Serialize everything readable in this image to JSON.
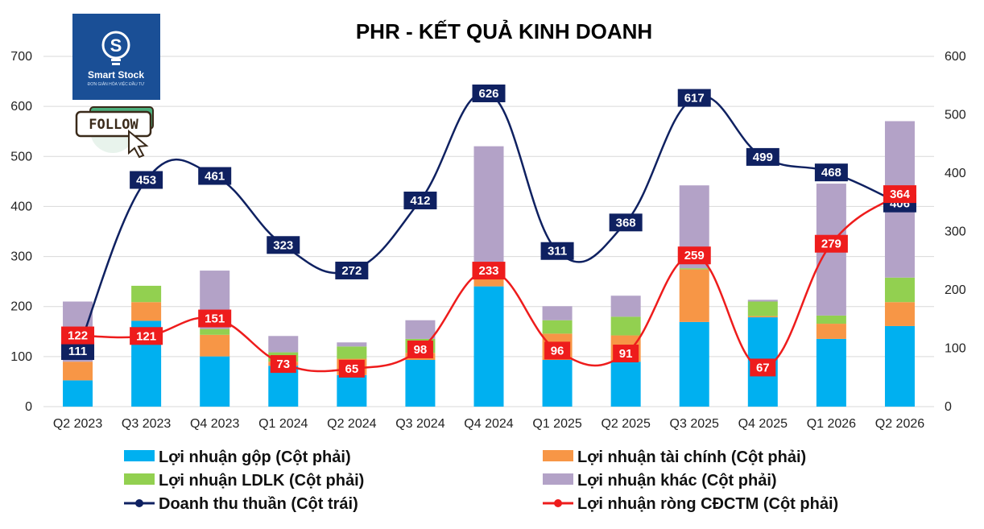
{
  "chart_data": {
    "type": "bar",
    "title": "PHR - KẾT QUẢ KINH DOANH",
    "categories": [
      "Q2 2023",
      "Q3 2023",
      "Q4 2023",
      "Q1 2024",
      "Q2 2024",
      "Q3 2024",
      "Q4 2024",
      "Q1 2025",
      "Q2 2025",
      "Q3 2025",
      "Q4 2025",
      "Q1 2026",
      "Q2 2026"
    ],
    "y_left": {
      "range": [
        0,
        700
      ],
      "ticks": [
        "0",
        "100",
        "200",
        "300",
        "400",
        "500",
        "600",
        "700"
      ]
    },
    "y_right": {
      "range": [
        0,
        600
      ],
      "ticks": [
        "0",
        "100",
        "200",
        "300",
        "400",
        "500",
        "600"
      ]
    },
    "grid": true,
    "legend_position": "bottom",
    "stacked_series": [
      {
        "name": "Lợi nhuận gộp (Cột phải)",
        "color": "#00b0f0",
        "axis": "right",
        "values": [
          45,
          147,
          86,
          70,
          54,
          80,
          206,
          80,
          77,
          145,
          153,
          116,
          138
        ]
      },
      {
        "name": "Lợi nhuận tài chính (Cột phải)",
        "color": "#f79646",
        "axis": "right",
        "values": [
          32,
          32,
          37,
          7,
          28,
          12,
          37,
          45,
          45,
          90,
          2,
          26,
          41
        ]
      },
      {
        "name": "Lợi nhuận LDLK (Cột phải)",
        "color": "#92d050",
        "axis": "right",
        "values": [
          0,
          28,
          10,
          16,
          21,
          24,
          0,
          23,
          32,
          2,
          25,
          14,
          42
        ]
      },
      {
        "name": "Lợi nhuận khác (Cột phải)",
        "color": "#b3a2c7",
        "axis": "right",
        "values": [
          103,
          0,
          100,
          28,
          7,
          32,
          203,
          24,
          36,
          142,
          3,
          226,
          268
        ]
      }
    ],
    "line_series": [
      {
        "name": "Doanh thu thuần (Cột trái)",
        "color": "#0f2161",
        "axis": "left",
        "values": [
          111,
          453,
          461,
          323,
          272,
          412,
          626,
          311,
          368,
          617,
          499,
          468,
          406
        ]
      },
      {
        "name": "Lợi nhuận ròng CĐCTM (Cột phải)",
        "color": "#ee1c1c",
        "axis": "right",
        "values": [
          122,
          121,
          151,
          73,
          65,
          98,
          233,
          96,
          91,
          259,
          67,
          279,
          364
        ]
      }
    ],
    "labels": {
      "revenue": [
        "111",
        "453",
        "461",
        "323",
        "272",
        "412",
        "626",
        "311",
        "368",
        "617",
        "499",
        "468",
        "406"
      ],
      "net_profit": [
        "122",
        "121",
        "151",
        "73",
        "65",
        "98",
        "233",
        "96",
        "91",
        "259",
        "67",
        "279",
        "364"
      ]
    }
  },
  "logo": {
    "name": "Smart Stock",
    "tagline": "ĐƠN GIẢN HÓA VIỆC ĐẦU TƯ",
    "icon": "lightbulb-s-icon"
  },
  "follow_badge": {
    "label": "FOLLOW",
    "icon": "cursor-icon"
  }
}
